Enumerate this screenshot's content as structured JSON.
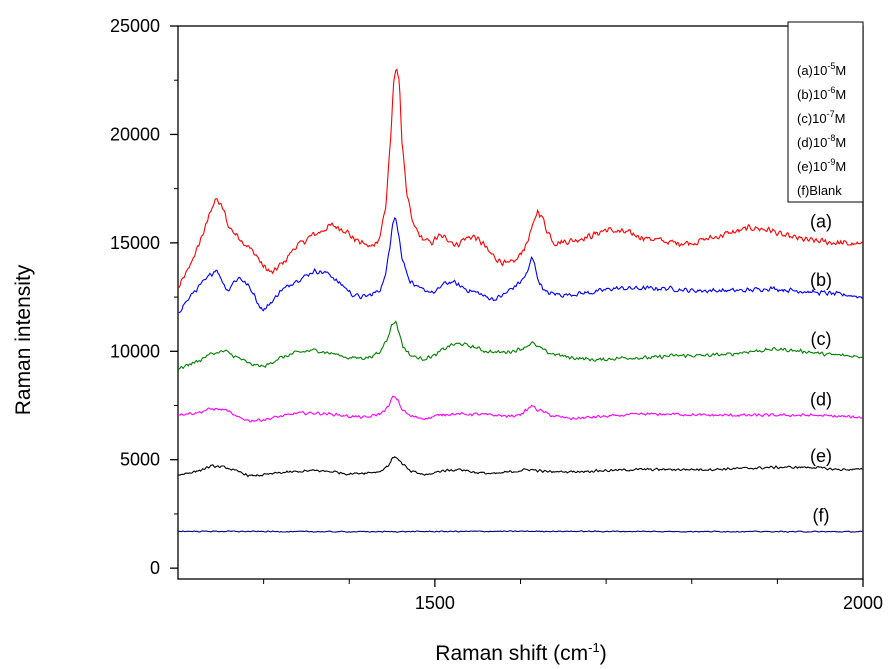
{
  "chart_data": {
    "type": "line",
    "xlabel": "Raman shift (cm",
    "xlabel_sup": "-1",
    "xlabel_suffix": ")",
    "ylabel": "Raman intensity",
    "xlim": [
      1200,
      2000
    ],
    "ylim": [
      -500,
      25000
    ],
    "x_major_ticks": [
      1500,
      2000
    ],
    "x_minor_ticks": [
      1300,
      1400,
      1600,
      1700,
      1800,
      1900
    ],
    "y_major_ticks": [
      0,
      5000,
      10000,
      15000,
      20000,
      25000
    ],
    "legend": {
      "position": "top-right",
      "entries": [
        {
          "prefix": "(a)10",
          "sup": "-5",
          "suffix": "M"
        },
        {
          "prefix": "(b)10",
          "sup": "-6",
          "suffix": "M"
        },
        {
          "prefix": "(c)10",
          "sup": "-7",
          "suffix": "M"
        },
        {
          "prefix": "(d)10",
          "sup": "-8",
          "suffix": "M"
        },
        {
          "prefix": "(e)10",
          "sup": "-9",
          "suffix": "M"
        },
        {
          "prefix": "(f)Blank",
          "sup": "",
          "suffix": ""
        }
      ]
    },
    "series": [
      {
        "label": "(a)",
        "color": "#ff0000",
        "noise": 180,
        "label_y": 15700,
        "points": [
          [
            1200,
            12900
          ],
          [
            1210,
            13600
          ],
          [
            1220,
            14500
          ],
          [
            1230,
            15500
          ],
          [
            1240,
            16700
          ],
          [
            1245,
            17000
          ],
          [
            1252,
            16600
          ],
          [
            1260,
            15700
          ],
          [
            1270,
            15300
          ],
          [
            1280,
            14900
          ],
          [
            1290,
            14500
          ],
          [
            1300,
            13900
          ],
          [
            1310,
            13600
          ],
          [
            1320,
            14000
          ],
          [
            1340,
            14900
          ],
          [
            1360,
            15400
          ],
          [
            1380,
            15800
          ],
          [
            1395,
            15600
          ],
          [
            1405,
            15200
          ],
          [
            1415,
            15000
          ],
          [
            1425,
            14800
          ],
          [
            1435,
            15200
          ],
          [
            1442,
            16500
          ],
          [
            1448,
            19500
          ],
          [
            1452,
            22400
          ],
          [
            1455,
            23200
          ],
          [
            1458,
            22500
          ],
          [
            1462,
            19500
          ],
          [
            1468,
            17000
          ],
          [
            1475,
            15800
          ],
          [
            1485,
            15200
          ],
          [
            1495,
            15000
          ],
          [
            1505,
            15300
          ],
          [
            1515,
            15200
          ],
          [
            1525,
            14900
          ],
          [
            1535,
            15200
          ],
          [
            1545,
            15300
          ],
          [
            1555,
            15000
          ],
          [
            1565,
            14500
          ],
          [
            1575,
            14200
          ],
          [
            1585,
            14000
          ],
          [
            1595,
            14200
          ],
          [
            1605,
            14800
          ],
          [
            1615,
            15800
          ],
          [
            1620,
            16500
          ],
          [
            1625,
            16200
          ],
          [
            1632,
            15500
          ],
          [
            1640,
            15000
          ],
          [
            1660,
            15100
          ],
          [
            1680,
            15300
          ],
          [
            1700,
            15600
          ],
          [
            1720,
            15500
          ],
          [
            1750,
            15200
          ],
          [
            1780,
            15000
          ],
          [
            1800,
            15000
          ],
          [
            1820,
            15200
          ],
          [
            1850,
            15500
          ],
          [
            1870,
            15700
          ],
          [
            1890,
            15600
          ],
          [
            1910,
            15300
          ],
          [
            1940,
            15100
          ],
          [
            1970,
            15000
          ],
          [
            2000,
            14900
          ]
        ]
      },
      {
        "label": "(b)",
        "color": "#0000ff",
        "noise": 130,
        "label_y": 13000,
        "points": [
          [
            1200,
            11800
          ],
          [
            1210,
            12300
          ],
          [
            1220,
            12800
          ],
          [
            1230,
            13200
          ],
          [
            1240,
            13600
          ],
          [
            1245,
            13800
          ],
          [
            1252,
            13200
          ],
          [
            1258,
            12800
          ],
          [
            1265,
            13200
          ],
          [
            1272,
            13400
          ],
          [
            1280,
            13100
          ],
          [
            1288,
            12700
          ],
          [
            1295,
            12100
          ],
          [
            1300,
            11900
          ],
          [
            1310,
            12300
          ],
          [
            1320,
            12800
          ],
          [
            1340,
            13300
          ],
          [
            1360,
            13700
          ],
          [
            1375,
            13600
          ],
          [
            1390,
            13100
          ],
          [
            1405,
            12600
          ],
          [
            1415,
            12500
          ],
          [
            1425,
            12600
          ],
          [
            1435,
            12800
          ],
          [
            1442,
            13400
          ],
          [
            1447,
            14800
          ],
          [
            1451,
            16000
          ],
          [
            1454,
            16200
          ],
          [
            1457,
            15500
          ],
          [
            1462,
            14300
          ],
          [
            1470,
            13300
          ],
          [
            1480,
            12900
          ],
          [
            1490,
            12800
          ],
          [
            1500,
            12700
          ],
          [
            1510,
            13100
          ],
          [
            1520,
            13200
          ],
          [
            1530,
            13000
          ],
          [
            1540,
            12800
          ],
          [
            1550,
            12700
          ],
          [
            1560,
            12500
          ],
          [
            1570,
            12400
          ],
          [
            1580,
            12600
          ],
          [
            1590,
            12900
          ],
          [
            1600,
            13200
          ],
          [
            1608,
            13600
          ],
          [
            1613,
            14300
          ],
          [
            1616,
            14200
          ],
          [
            1620,
            13300
          ],
          [
            1630,
            12700
          ],
          [
            1650,
            12600
          ],
          [
            1680,
            12700
          ],
          [
            1710,
            12900
          ],
          [
            1740,
            12900
          ],
          [
            1770,
            12900
          ],
          [
            1800,
            12800
          ],
          [
            1830,
            12800
          ],
          [
            1860,
            12800
          ],
          [
            1890,
            12900
          ],
          [
            1920,
            12800
          ],
          [
            1950,
            12700
          ],
          [
            1980,
            12600
          ],
          [
            2000,
            12500
          ]
        ]
      },
      {
        "label": "(c)",
        "color": "#008000",
        "noise": 100,
        "label_y": 10300,
        "points": [
          [
            1200,
            9200
          ],
          [
            1220,
            9500
          ],
          [
            1240,
            9900
          ],
          [
            1255,
            10000
          ],
          [
            1270,
            9700
          ],
          [
            1285,
            9400
          ],
          [
            1300,
            9300
          ],
          [
            1320,
            9700
          ],
          [
            1340,
            9950
          ],
          [
            1360,
            10050
          ],
          [
            1380,
            9900
          ],
          [
            1400,
            9700
          ],
          [
            1420,
            9700
          ],
          [
            1435,
            9900
          ],
          [
            1443,
            10500
          ],
          [
            1450,
            11200
          ],
          [
            1454,
            11400
          ],
          [
            1458,
            10900
          ],
          [
            1463,
            10200
          ],
          [
            1472,
            9800
          ],
          [
            1485,
            9650
          ],
          [
            1500,
            9800
          ],
          [
            1510,
            10100
          ],
          [
            1520,
            10300
          ],
          [
            1530,
            10350
          ],
          [
            1545,
            10200
          ],
          [
            1560,
            10000
          ],
          [
            1575,
            9950
          ],
          [
            1590,
            10000
          ],
          [
            1600,
            10100
          ],
          [
            1608,
            10250
          ],
          [
            1613,
            10400
          ],
          [
            1620,
            10200
          ],
          [
            1635,
            9900
          ],
          [
            1660,
            9700
          ],
          [
            1690,
            9600
          ],
          [
            1720,
            9700
          ],
          [
            1750,
            9700
          ],
          [
            1780,
            9800
          ],
          [
            1810,
            9800
          ],
          [
            1840,
            9850
          ],
          [
            1870,
            10000
          ],
          [
            1900,
            10100
          ],
          [
            1930,
            10000
          ],
          [
            1960,
            9850
          ],
          [
            2000,
            9750
          ]
        ]
      },
      {
        "label": "(d)",
        "color": "#ff00ff",
        "noise": 80,
        "label_y": 7500,
        "points": [
          [
            1200,
            7100
          ],
          [
            1220,
            7150
          ],
          [
            1240,
            7350
          ],
          [
            1255,
            7300
          ],
          [
            1270,
            6950
          ],
          [
            1285,
            6800
          ],
          [
            1300,
            6850
          ],
          [
            1320,
            7000
          ],
          [
            1340,
            7150
          ],
          [
            1360,
            7150
          ],
          [
            1380,
            7100
          ],
          [
            1400,
            7000
          ],
          [
            1420,
            6950
          ],
          [
            1435,
            7100
          ],
          [
            1445,
            7400
          ],
          [
            1451,
            7900
          ],
          [
            1456,
            7800
          ],
          [
            1462,
            7300
          ],
          [
            1472,
            7000
          ],
          [
            1490,
            6900
          ],
          [
            1510,
            7100
          ],
          [
            1530,
            7100
          ],
          [
            1550,
            7100
          ],
          [
            1570,
            7050
          ],
          [
            1590,
            7000
          ],
          [
            1600,
            7100
          ],
          [
            1608,
            7300
          ],
          [
            1613,
            7500
          ],
          [
            1620,
            7300
          ],
          [
            1640,
            7000
          ],
          [
            1660,
            6900
          ],
          [
            1700,
            7000
          ],
          [
            1740,
            7100
          ],
          [
            1780,
            7100
          ],
          [
            1820,
            7050
          ],
          [
            1860,
            7050
          ],
          [
            1900,
            7050
          ],
          [
            1940,
            7050
          ],
          [
            1970,
            7000
          ],
          [
            2000,
            6950
          ]
        ]
      },
      {
        "label": "(e)",
        "color": "#000000",
        "noise": 70,
        "label_y": 4900,
        "points": [
          [
            1200,
            4300
          ],
          [
            1220,
            4450
          ],
          [
            1240,
            4700
          ],
          [
            1255,
            4650
          ],
          [
            1270,
            4450
          ],
          [
            1285,
            4250
          ],
          [
            1300,
            4300
          ],
          [
            1320,
            4400
          ],
          [
            1340,
            4450
          ],
          [
            1360,
            4500
          ],
          [
            1380,
            4450
          ],
          [
            1400,
            4350
          ],
          [
            1420,
            4400
          ],
          [
            1435,
            4450
          ],
          [
            1445,
            4700
          ],
          [
            1451,
            5100
          ],
          [
            1456,
            5100
          ],
          [
            1462,
            4800
          ],
          [
            1472,
            4450
          ],
          [
            1490,
            4300
          ],
          [
            1510,
            4500
          ],
          [
            1530,
            4550
          ],
          [
            1550,
            4400
          ],
          [
            1570,
            4350
          ],
          [
            1590,
            4450
          ],
          [
            1610,
            4550
          ],
          [
            1630,
            4450
          ],
          [
            1660,
            4450
          ],
          [
            1700,
            4500
          ],
          [
            1740,
            4550
          ],
          [
            1780,
            4550
          ],
          [
            1820,
            4550
          ],
          [
            1860,
            4600
          ],
          [
            1900,
            4650
          ],
          [
            1940,
            4650
          ],
          [
            1970,
            4550
          ],
          [
            2000,
            4550
          ]
        ]
      },
      {
        "label": "(f)",
        "color": "#000080",
        "noise": 30,
        "label_y": 2150,
        "points": [
          [
            1200,
            1700
          ],
          [
            1400,
            1680
          ],
          [
            1600,
            1700
          ],
          [
            1800,
            1690
          ],
          [
            2000,
            1680
          ]
        ]
      }
    ]
  }
}
